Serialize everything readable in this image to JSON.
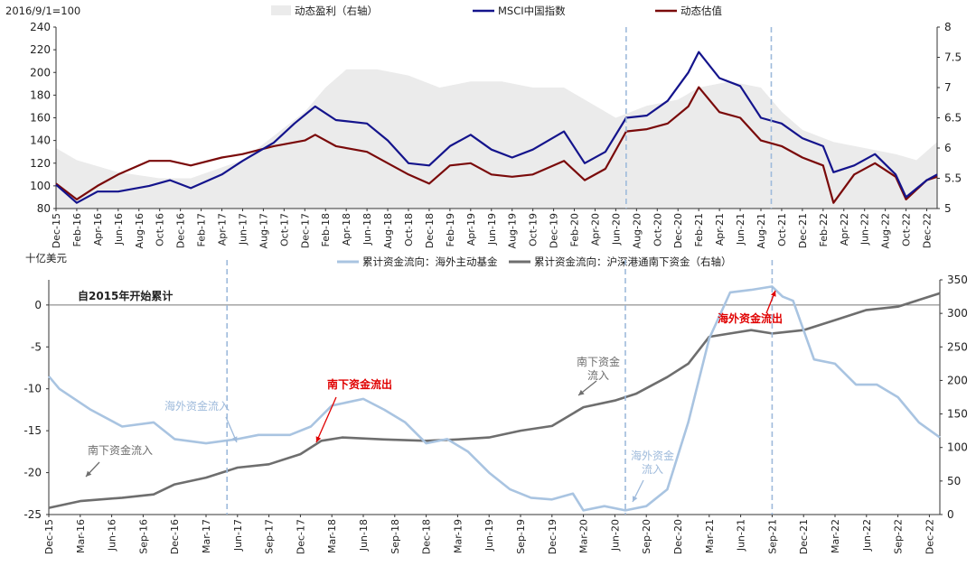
{
  "colors": {
    "profit_fill": "#ebebeb",
    "msci_line": "#14148c",
    "valuation_line": "#7a0a0a",
    "overseas_flow": "#a9c4e1",
    "southbound_flow": "#6e6e6e",
    "dashed_marker": "#9ebadb",
    "annotation_red": "#e00000",
    "annotation_blue": "#9ebadb",
    "annotation_gray": "#6e6e6e"
  },
  "chart_data": [
    {
      "type": "line",
      "title": "",
      "ylabel_left_caption": "2016/9/1=100",
      "ylim_left": [
        80,
        240
      ],
      "yticks_left": [
        "80",
        "100",
        "120",
        "140",
        "160",
        "180",
        "200",
        "220",
        "240"
      ],
      "ylim_right": [
        5,
        8
      ],
      "yticks_right": [
        "5",
        "5.5",
        "6",
        "6.5",
        "7",
        "7.5",
        "8"
      ],
      "x_range": [
        "2015-12",
        "2023-01"
      ],
      "xticks": [
        "Dec-15",
        "Feb-16",
        "Apr-16",
        "Jun-16",
        "Aug-16",
        "Oct-16",
        "Dec-16",
        "Feb-17",
        "Apr-17",
        "Jun-17",
        "Aug-17",
        "Oct-17",
        "Dec-17",
        "Feb-18",
        "Apr-18",
        "Jun-18",
        "Aug-18",
        "Oct-18",
        "Dec-18",
        "Feb-19",
        "Apr-19",
        "Jun-19",
        "Aug-19",
        "Oct-19",
        "Dec-19",
        "Feb-20",
        "Apr-20",
        "Jun-20",
        "Aug-20",
        "Oct-20",
        "Dec-20",
        "Feb-21",
        "Apr-21",
        "Jun-21",
        "Aug-21",
        "Oct-21",
        "Dec-21",
        "Feb-22",
        "Apr-22",
        "Jun-22",
        "Aug-22",
        "Oct-22",
        "Dec-22"
      ],
      "legend_position": "top",
      "grid": false,
      "series": [
        {
          "name": "动态盈利（右轴）",
          "axis": "right",
          "style": "area",
          "points": [
            [
              "2015-12",
              6.0
            ],
            [
              "2016-02",
              5.8
            ],
            [
              "2016-06",
              5.6
            ],
            [
              "2016-10",
              5.5
            ],
            [
              "2017-01",
              5.5
            ],
            [
              "2017-06",
              5.8
            ],
            [
              "2017-09",
              6.2
            ],
            [
              "2017-12",
              6.6
            ],
            [
              "2018-02",
              7.0
            ],
            [
              "2018-04",
              7.3
            ],
            [
              "2018-07",
              7.3
            ],
            [
              "2018-10",
              7.2
            ],
            [
              "2019-01",
              7.0
            ],
            [
              "2019-04",
              7.1
            ],
            [
              "2019-07",
              7.1
            ],
            [
              "2019-10",
              7.0
            ],
            [
              "2020-01",
              7.0
            ],
            [
              "2020-03",
              6.8
            ],
            [
              "2020-06",
              6.5
            ],
            [
              "2020-09",
              6.7
            ],
            [
              "2020-12",
              6.8
            ],
            [
              "2021-02",
              7.0
            ],
            [
              "2021-05",
              7.1
            ],
            [
              "2021-08",
              7.0
            ],
            [
              "2021-10",
              6.6
            ],
            [
              "2021-12",
              6.3
            ],
            [
              "2022-03",
              6.1
            ],
            [
              "2022-06",
              6.0
            ],
            [
              "2022-09",
              5.9
            ],
            [
              "2022-11",
              5.8
            ],
            [
              "2023-01",
              6.1
            ]
          ]
        },
        {
          "name": "MSCI中国指数",
          "axis": "left",
          "style": "line",
          "points": [
            [
              "2015-12",
              101
            ],
            [
              "2016-02",
              85
            ],
            [
              "2016-04",
              95
            ],
            [
              "2016-06",
              95
            ],
            [
              "2016-09",
              100
            ],
            [
              "2016-11",
              105
            ],
            [
              "2017-01",
              98
            ],
            [
              "2017-04",
              110
            ],
            [
              "2017-06",
              122
            ],
            [
              "2017-09",
              138
            ],
            [
              "2017-11",
              155
            ],
            [
              "2018-01",
              170
            ],
            [
              "2018-03",
              158
            ],
            [
              "2018-06",
              155
            ],
            [
              "2018-08",
              140
            ],
            [
              "2018-10",
              120
            ],
            [
              "2018-12",
              118
            ],
            [
              "2019-02",
              135
            ],
            [
              "2019-04",
              145
            ],
            [
              "2019-06",
              132
            ],
            [
              "2019-08",
              125
            ],
            [
              "2019-10",
              132
            ],
            [
              "2020-01",
              148
            ],
            [
              "2020-03",
              120
            ],
            [
              "2020-05",
              130
            ],
            [
              "2020-07",
              160
            ],
            [
              "2020-09",
              162
            ],
            [
              "2020-11",
              175
            ],
            [
              "2021-01",
              200
            ],
            [
              "2021-02",
              218
            ],
            [
              "2021-04",
              195
            ],
            [
              "2021-06",
              188
            ],
            [
              "2021-08",
              160
            ],
            [
              "2021-10",
              155
            ],
            [
              "2021-12",
              142
            ],
            [
              "2022-02",
              135
            ],
            [
              "2022-03",
              112
            ],
            [
              "2022-05",
              118
            ],
            [
              "2022-07",
              128
            ],
            [
              "2022-09",
              110
            ],
            [
              "2022-10",
              90
            ],
            [
              "2022-12",
              105
            ],
            [
              "2023-01",
              110
            ]
          ]
        },
        {
          "name": "动态估值",
          "axis": "left",
          "style": "line",
          "points": [
            [
              "2015-12",
              102
            ],
            [
              "2016-02",
              88
            ],
            [
              "2016-04",
              100
            ],
            [
              "2016-06",
              110
            ],
            [
              "2016-09",
              122
            ],
            [
              "2016-11",
              122
            ],
            [
              "2017-01",
              118
            ],
            [
              "2017-04",
              125
            ],
            [
              "2017-06",
              128
            ],
            [
              "2017-09",
              135
            ],
            [
              "2017-12",
              140
            ],
            [
              "2018-01",
              145
            ],
            [
              "2018-03",
              135
            ],
            [
              "2018-06",
              130
            ],
            [
              "2018-08",
              120
            ],
            [
              "2018-10",
              110
            ],
            [
              "2018-12",
              102
            ],
            [
              "2019-02",
              118
            ],
            [
              "2019-04",
              120
            ],
            [
              "2019-06",
              110
            ],
            [
              "2019-08",
              108
            ],
            [
              "2019-10",
              110
            ],
            [
              "2020-01",
              122
            ],
            [
              "2020-03",
              105
            ],
            [
              "2020-05",
              115
            ],
            [
              "2020-07",
              148
            ],
            [
              "2020-09",
              150
            ],
            [
              "2020-11",
              155
            ],
            [
              "2021-01",
              170
            ],
            [
              "2021-02",
              187
            ],
            [
              "2021-04",
              165
            ],
            [
              "2021-06",
              160
            ],
            [
              "2021-08",
              140
            ],
            [
              "2021-10",
              135
            ],
            [
              "2021-12",
              125
            ],
            [
              "2022-02",
              118
            ],
            [
              "2022-03",
              85
            ],
            [
              "2022-05",
              110
            ],
            [
              "2022-07",
              120
            ],
            [
              "2022-09",
              108
            ],
            [
              "2022-10",
              88
            ],
            [
              "2022-12",
              105
            ],
            [
              "2023-01",
              108
            ]
          ]
        }
      ],
      "vertical_markers": [
        "2020-07",
        "2021-09"
      ]
    },
    {
      "type": "line",
      "title": "",
      "ylabel_left_caption": "十亿美元",
      "ylim_left": [
        -25,
        3
      ],
      "yticks_left": [
        "0",
        "-5",
        "-10",
        "-15",
        "-20",
        "-25"
      ],
      "ylim_right": [
        0,
        350
      ],
      "yticks_right": [
        "0",
        "50",
        "100",
        "150",
        "200",
        "250",
        "300",
        "350"
      ],
      "x_range": [
        "2015-12",
        "2023-01"
      ],
      "xticks": [
        "Dec-15",
        "Mar-16",
        "Jun-16",
        "Sep-16",
        "Dec-16",
        "Mar-17",
        "Jun-17",
        "Sep-17",
        "Dec-17",
        "Mar-18",
        "Jun-18",
        "Sep-18",
        "Dec-18",
        "Mar-19",
        "Jun-19",
        "Sep-19",
        "Dec-19",
        "Mar-20",
        "Jun-20",
        "Sep-20",
        "Dec-20",
        "Mar-21",
        "Jun-21",
        "Sep-21",
        "Dec-21",
        "Mar-22",
        "Jun-22",
        "Sep-22",
        "Dec-22"
      ],
      "zero_line_label": "自2015年开始累计",
      "legend_position": "top",
      "grid": false,
      "series": [
        {
          "name": "累计资金流向：海外主动基金",
          "axis": "left",
          "points": [
            [
              "2015-12",
              -8.5
            ],
            [
              "2016-01",
              -10
            ],
            [
              "2016-04",
              -12.5
            ],
            [
              "2016-07",
              -14.5
            ],
            [
              "2016-10",
              -14
            ],
            [
              "2016-12",
              -16
            ],
            [
              "2017-03",
              -16.5
            ],
            [
              "2017-06",
              -16
            ],
            [
              "2017-08",
              -15.5
            ],
            [
              "2017-11",
              -15.5
            ],
            [
              "2018-01",
              -14.5
            ],
            [
              "2018-03",
              -12
            ],
            [
              "2018-06",
              -11.2
            ],
            [
              "2018-08",
              -12.5
            ],
            [
              "2018-10",
              -14
            ],
            [
              "2018-12",
              -16.5
            ],
            [
              "2019-02",
              -16
            ],
            [
              "2019-04",
              -17.5
            ],
            [
              "2019-06",
              -20
            ],
            [
              "2019-08",
              -22
            ],
            [
              "2019-10",
              -23
            ],
            [
              "2019-12",
              -23.2
            ],
            [
              "2020-02",
              -22.5
            ],
            [
              "2020-03",
              -24.5
            ],
            [
              "2020-05",
              -24
            ],
            [
              "2020-07",
              -24.5
            ],
            [
              "2020-09",
              -24
            ],
            [
              "2020-11",
              -22
            ],
            [
              "2021-01",
              -14
            ],
            [
              "2021-03",
              -4
            ],
            [
              "2021-05",
              1.5
            ],
            [
              "2021-07",
              1.8
            ],
            [
              "2021-09",
              2.2
            ],
            [
              "2021-10",
              1
            ],
            [
              "2021-11",
              0.5
            ],
            [
              "2021-12",
              -3
            ],
            [
              "2022-01",
              -6.5
            ],
            [
              "2022-03",
              -7
            ],
            [
              "2022-05",
              -9.5
            ],
            [
              "2022-07",
              -9.5
            ],
            [
              "2022-09",
              -11
            ],
            [
              "2022-11",
              -14
            ],
            [
              "2023-01",
              -15.8
            ]
          ]
        },
        {
          "name": "累计资金流向：沪深港通南下资金（右轴）",
          "axis": "right",
          "points": [
            [
              "2015-12",
              10
            ],
            [
              "2016-03",
              20
            ],
            [
              "2016-07",
              25
            ],
            [
              "2016-10",
              30
            ],
            [
              "2016-12",
              45
            ],
            [
              "2017-03",
              55
            ],
            [
              "2017-06",
              70
            ],
            [
              "2017-09",
              75
            ],
            [
              "2017-12",
              90
            ],
            [
              "2018-02",
              110
            ],
            [
              "2018-04",
              115
            ],
            [
              "2018-08",
              112
            ],
            [
              "2018-12",
              110
            ],
            [
              "2019-03",
              112
            ],
            [
              "2019-06",
              115
            ],
            [
              "2019-09",
              125
            ],
            [
              "2019-12",
              132
            ],
            [
              "2020-03",
              160
            ],
            [
              "2020-06",
              170
            ],
            [
              "2020-08",
              180
            ],
            [
              "2020-11",
              205
            ],
            [
              "2021-01",
              225
            ],
            [
              "2021-03",
              265
            ],
            [
              "2021-05",
              270
            ],
            [
              "2021-07",
              275
            ],
            [
              "2021-09",
              270
            ],
            [
              "2021-12",
              275
            ],
            [
              "2022-03",
              290
            ],
            [
              "2022-06",
              305
            ],
            [
              "2022-09",
              310
            ],
            [
              "2022-11",
              320
            ],
            [
              "2023-01",
              330
            ]
          ]
        }
      ],
      "vertical_markers": [
        "2017-05",
        "2020-07",
        "2021-09"
      ],
      "annotations": [
        {
          "text": "海外资金流入",
          "color": "blue"
        },
        {
          "text": "南下资金流入",
          "color": "gray"
        },
        {
          "text": "南下资金流出",
          "color": "red"
        },
        {
          "text": "南下资金流入",
          "color": "gray"
        },
        {
          "text": "海外资金流入",
          "color": "blue"
        },
        {
          "text": "海外资金流出",
          "color": "red"
        }
      ]
    }
  ]
}
